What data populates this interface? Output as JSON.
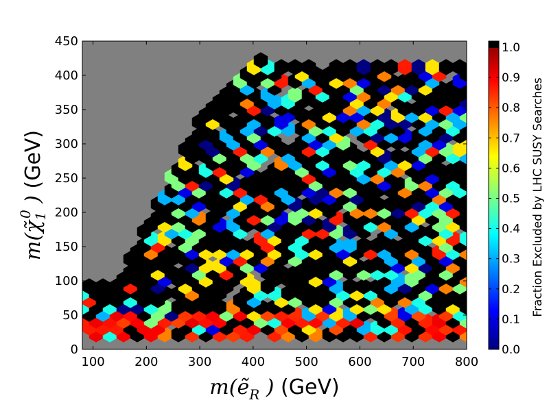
{
  "chart_data": {
    "type": "heatmap",
    "subtype": "hexbin",
    "background_color": "#808080",
    "empty_meaning": "no data (gray)",
    "x_axis": {
      "math_text": "m(ẽ",
      "math_sub": "R",
      "unit_text": " (GeV)",
      "range": [
        80,
        800
      ],
      "ticks": [
        100,
        200,
        300,
        400,
        500,
        600,
        700,
        800
      ]
    },
    "y_axis": {
      "math_text": "m(χ̃",
      "math_sup": "0",
      "math_sub": "1",
      "unit_text": " (GeV)",
      "range": [
        0,
        450
      ],
      "ticks": [
        0,
        50,
        100,
        150,
        200,
        250,
        300,
        350,
        400,
        450
      ]
    },
    "colorbar": {
      "label": "Fraction Excluded by LHC SUSY Searches",
      "range": [
        0.0,
        1.0
      ],
      "ticks": [
        "0.0",
        "0.1",
        "0.2",
        "0.3",
        "0.4",
        "0.5",
        "0.6",
        "0.7",
        "0.8",
        "0.9",
        "1.0"
      ],
      "colormap": "jet",
      "jet_stops": [
        "#00007f",
        "#0000ff",
        "#007fff",
        "#00ffff",
        "#7fff7f",
        "#ffff00",
        "#ff7f00",
        "#ff0000",
        "#7f0000"
      ]
    },
    "colormap_over_color": "#000000",
    "x": [],
    "y": [],
    "z": [],
    "hex_grid": {
      "columns_x": [
        97,
        117,
        137,
        157,
        177,
        197,
        217,
        237,
        257,
        277,
        297,
        317,
        337,
        357,
        377,
        397,
        417,
        437,
        457,
        477,
        497,
        517,
        537,
        557,
        577,
        597,
        617,
        637,
        657,
        677,
        697,
        717,
        737,
        757,
        777,
        797
      ],
      "row_height": 10,
      "rows": [
        "...............................................................................",
        "...............................................................................",
        "...............................................................................",
        "...............................................................................",
        "..................bbbbbbbbbbbb...bbbbbbbbbbb...................................",
        "................bbbbbbbbbbbbbbbbbbbbbbbbbbbbbbbbb..............................",
        "bbbbbbbbbbbbbbbbbbbbbbbbbbbbbbbbbbbbbbbbbbbbbbbbb.b.......b....................."
      ],
      "cells": [
        [
          60,
          427,
          "b"
        ],
        [
          80,
          417,
          "b"
        ],
        [
          40,
          417,
          "b"
        ],
        [
          100,
          427,
          "b"
        ],
        [
          140,
          417,
          "b"
        ],
        [
          120,
          427,
          "b"
        ],
        [
          180,
          417,
          "b"
        ],
        [
          160,
          427,
          "b"
        ],
        [
          200,
          417,
          "b"
        ],
        [
          180,
          437,
          "b"
        ],
        [
          60,
          447,
          "b"
        ],
        [
          100,
          447,
          "b"
        ],
        [
          140,
          447,
          "b"
        ],
        [
          160,
          467,
          "b"
        ],
        [
          200,
          447,
          "b"
        ],
        [
          190,
          487,
          "b"
        ],
        [
          120,
          437,
          "b"
        ],
        [
          220,
          437,
          "b"
        ]
      ]
    }
  }
}
